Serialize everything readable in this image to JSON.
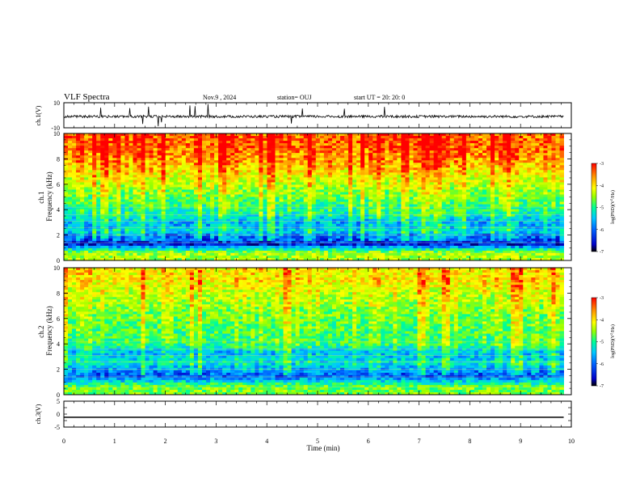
{
  "header": {
    "title": "VLF Spectra",
    "date": "Nov.9 , 2024",
    "station": "station= OUJ",
    "start": "start UT = 20: 20: 0"
  },
  "chart_data": [
    {
      "type": "line",
      "name": "ch1-waveform",
      "ylabel": "ch.1(V)",
      "ylim": [
        -10,
        10
      ],
      "ytick_labels": [
        "10",
        "-10"
      ],
      "xlim": [
        0,
        10
      ],
      "description_values": {
        "baseline": -1,
        "typical_amplitude": 2,
        "spike_amplitude": 9
      }
    },
    {
      "type": "heatmap",
      "name": "ch1-spectrogram",
      "ylabel": "ch.1\nFrequency (kHz)",
      "ylim": [
        0,
        10
      ],
      "ytick_labels": [
        "0",
        "2",
        "4",
        "6",
        "8",
        "10"
      ],
      "xlim": [
        0,
        9.85
      ],
      "colorbar": {
        "label": "log(PSD)(V²/Hz)",
        "range": [
          -7,
          -3
        ],
        "tick_labels": [
          "-3",
          "-4",
          "-5",
          "-6",
          "-7"
        ]
      },
      "bands": [
        {
          "f": 0.6,
          "logpsd": -4.4
        },
        {
          "f": 1.25,
          "logpsd": -6.3
        },
        {
          "f": 2.0,
          "logpsd": -5.9
        },
        {
          "f": 2.3,
          "logpsd": -5.4
        },
        {
          "f": 2.6,
          "logpsd": -5.6
        },
        {
          "f": 3.0,
          "logpsd": -5.7
        },
        {
          "f": 3.6,
          "logpsd": -5.2
        },
        {
          "f": 4.5,
          "logpsd": -4.9
        },
        {
          "f": 6.0,
          "logpsd": -4.4
        },
        {
          "f": 7.5,
          "logpsd": -3.8
        },
        {
          "f": 9.0,
          "logpsd": -3.4
        }
      ]
    },
    {
      "type": "heatmap",
      "name": "ch2-spectrogram",
      "ylabel": "ch.2\nFrequency (kHz)",
      "ylim": [
        0,
        10
      ],
      "ytick_labels": [
        "0",
        "2",
        "4",
        "6",
        "8",
        "10"
      ],
      "xlim": [
        0,
        9.85
      ],
      "colorbar": {
        "label": "log(PSD)(V²/Hz)",
        "range": [
          -7,
          -3
        ],
        "tick_labels": [
          "-3",
          "-4",
          "-5",
          "-6",
          "-7"
        ]
      },
      "bands": [
        {
          "f": 0.6,
          "logpsd": -4.6
        },
        {
          "f": 1.5,
          "logpsd": -6.1
        },
        {
          "f": 2.5,
          "logpsd": -5.3
        },
        {
          "f": 3.3,
          "logpsd": -5.6
        },
        {
          "f": 4.0,
          "logpsd": -4.9
        },
        {
          "f": 5.0,
          "logpsd": -4.8
        },
        {
          "f": 6.5,
          "logpsd": -4.6
        },
        {
          "f": 8.0,
          "logpsd": -4.3
        },
        {
          "f": 9.0,
          "logpsd": -4.0
        }
      ]
    },
    {
      "type": "line",
      "name": "ch3-waveform",
      "ylabel": "ch.3(V)",
      "ylim": [
        -5,
        5
      ],
      "ytick_labels": [
        "5",
        "0",
        "-5"
      ],
      "xlim": [
        0,
        10
      ],
      "x": [
        0,
        9.85
      ],
      "y": [
        -1.2,
        -1.2
      ]
    }
  ],
  "xaxis": {
    "label": "Time (min)",
    "range": [
      0,
      10
    ],
    "tick_labels": [
      "0",
      "1",
      "2",
      "3",
      "4",
      "5",
      "6",
      "7",
      "8",
      "9",
      "10"
    ]
  },
  "colors": {
    "colormap": [
      "#000000",
      "#0000c8",
      "#0064ff",
      "#00c8ff",
      "#00ff96",
      "#96ff00",
      "#ffff00",
      "#ff9600",
      "#ff0000"
    ],
    "axis": "#000000"
  }
}
